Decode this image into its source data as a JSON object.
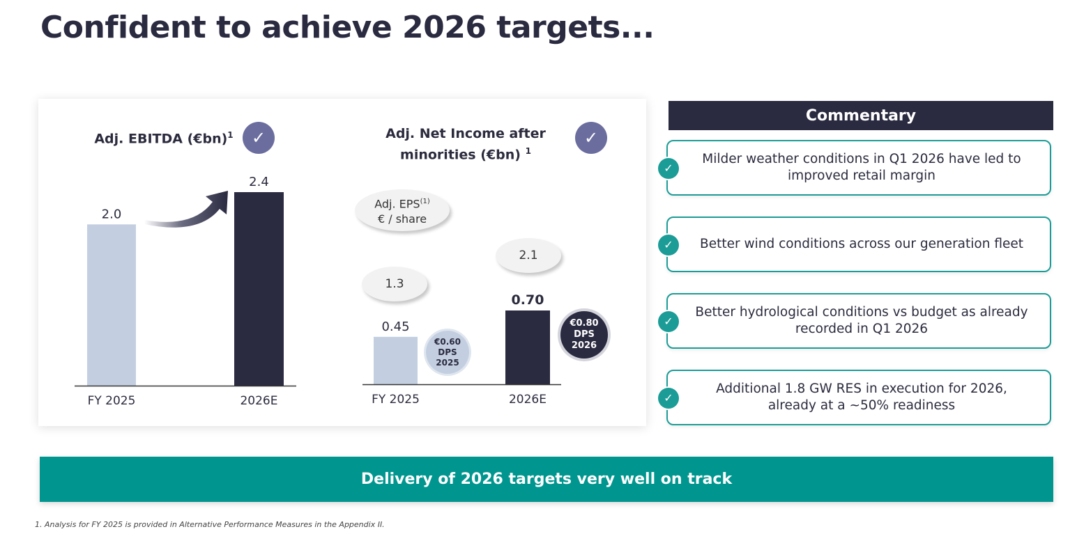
{
  "page": {
    "title": "Confident to achieve 2026 targets..."
  },
  "colors": {
    "navy": "#2a2a40",
    "light_bar": "#c3cfe0",
    "teal": "#00968f",
    "badge": "#6b6d9e"
  },
  "chart_data": [
    {
      "type": "bar",
      "title": "Adj. EBITDA (€bn)",
      "title_footnote": "1",
      "categories": [
        "FY 2025",
        "2026E"
      ],
      "values": [
        2.0,
        2.4
      ],
      "value_labels": [
        "2.0",
        "2.4"
      ],
      "badge_icon": "check-icon",
      "ylim": [
        0,
        2.4
      ]
    },
    {
      "type": "bar",
      "title": "Adj. Net Income after minorities (€bn)",
      "title_footnote": "1",
      "categories": [
        "FY 2025",
        "2026E"
      ],
      "values": [
        0.45,
        0.7
      ],
      "value_labels": [
        "0.45",
        "0.70"
      ],
      "badge_icon": "check-icon",
      "ylim": [
        0,
        1.6
      ],
      "eps": {
        "label_line1": "Adj. EPS",
        "label_footnote": "(1)",
        "label_line2": "€ / share",
        "values": [
          "1.3",
          "2.1"
        ]
      },
      "dps": [
        {
          "amount": "€0.60",
          "label": "DPS",
          "year": "2025"
        },
        {
          "amount": "€0.80",
          "label": "DPS",
          "year": "2026"
        }
      ]
    }
  ],
  "commentary": {
    "header": "Commentary",
    "items": [
      "Milder weather conditions in Q1 2026 have led to improved retail margin",
      "Better wind conditions across our generation fleet",
      "Better hydrological conditions vs budget as already recorded in Q1 2026",
      "Additional 1.8 GW RES in execution for 2026, already at a ~50% readiness"
    ],
    "check_symbol": "✓"
  },
  "banner": {
    "text": "Delivery of 2026 targets very well on track"
  },
  "footnote": "1. Analysis for FY 2025 is provided in Alternative Performance Measures in the Appendix II.",
  "badge_symbol": "✓"
}
